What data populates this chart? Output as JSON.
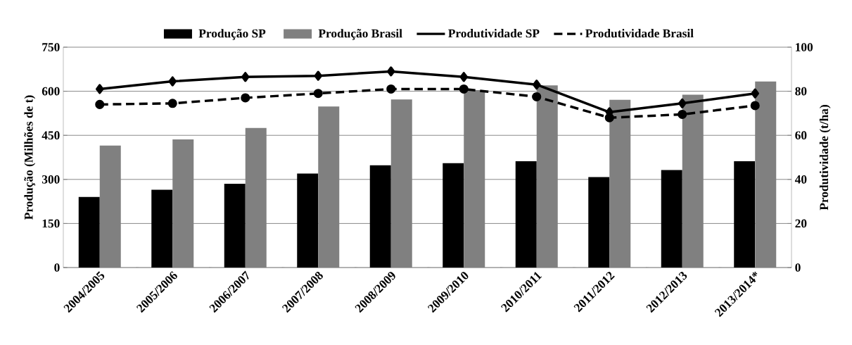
{
  "chart_data": {
    "type": "bar",
    "categories": [
      "2004/2005",
      "2005/2006",
      "2006/2007",
      "2007/2008",
      "2008/2009",
      "2009/2010",
      "2010/2011",
      "2011/2012",
      "2012/2013",
      "2013/2014*"
    ],
    "series": [
      {
        "name": "Produção SP",
        "color": "#000000",
        "values": [
          240,
          265,
          285,
          320,
          348,
          355,
          362,
          308,
          332,
          362
        ]
      },
      {
        "name": "Produção Brasil",
        "color": "#808080",
        "values": [
          415,
          436,
          475,
          548,
          572,
          604,
          620,
          571,
          588,
          633
        ]
      },
      {
        "name": "Produtividade SP",
        "type": "line",
        "axis": "y2",
        "color": "#000000",
        "marker": "diamond",
        "line_style": "solid",
        "values": [
          81,
          84.5,
          86.5,
          87,
          89,
          86.5,
          83,
          70.5,
          74.5,
          79
        ]
      },
      {
        "name": "Produtividade Brasil",
        "type": "line",
        "axis": "y2",
        "color": "#000000",
        "marker": "circle",
        "line_style": "dashed",
        "values": [
          74,
          74.5,
          77,
          79,
          81,
          81,
          77.5,
          68,
          69.5,
          73.5
        ]
      }
    ],
    "ylabel": "Produção (Milhões de t)",
    "y2label": "Produtividade (t/ha)",
    "ylim": [
      0,
      750
    ],
    "yticks": [
      0,
      150,
      300,
      450,
      600,
      750
    ],
    "y2lim": [
      0,
      100
    ],
    "y2ticks": [
      0,
      20,
      40,
      60,
      80,
      100
    ],
    "grid": "y",
    "legend": "top"
  }
}
